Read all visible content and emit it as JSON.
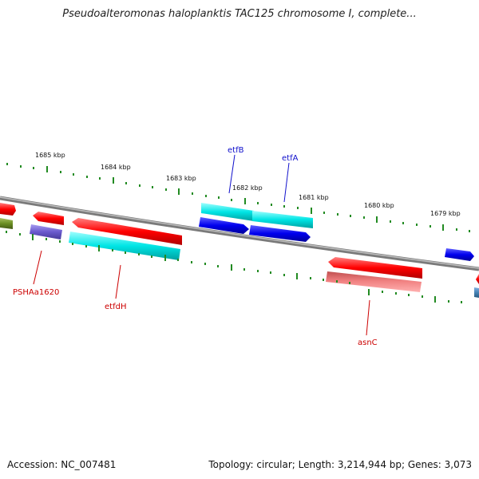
{
  "title": "Pseudoalteromonas haloplanktis TAC125 chromosome I, complete...",
  "footer": {
    "accession": "Accession: NC_007481",
    "summary": "Topology: circular; Length: 3,214,944 bp; Genes: 3,073"
  },
  "kbp_labels": [
    "1685 kbp",
    "1684 kbp",
    "1683 kbp",
    "1682 kbp",
    "1681 kbp",
    "1680 kbp",
    "1679 kbp"
  ],
  "gene_labels": {
    "etfB": "etfB",
    "etfA": "etfA",
    "PSHAa1620": "PSHAa1620",
    "etfdH": "etfdH",
    "asnC": "asnC"
  },
  "colors": {
    "red": "#ff0000",
    "cyan": "#00e5e5",
    "blue": "#0000ee",
    "purple": "#6a5acd",
    "olive": "#6b8e23",
    "pink": "#f08080",
    "steel": "#4682b4",
    "tick_green": "#228b22",
    "label_blue": "#1010cc",
    "label_red": "#cc0000"
  }
}
